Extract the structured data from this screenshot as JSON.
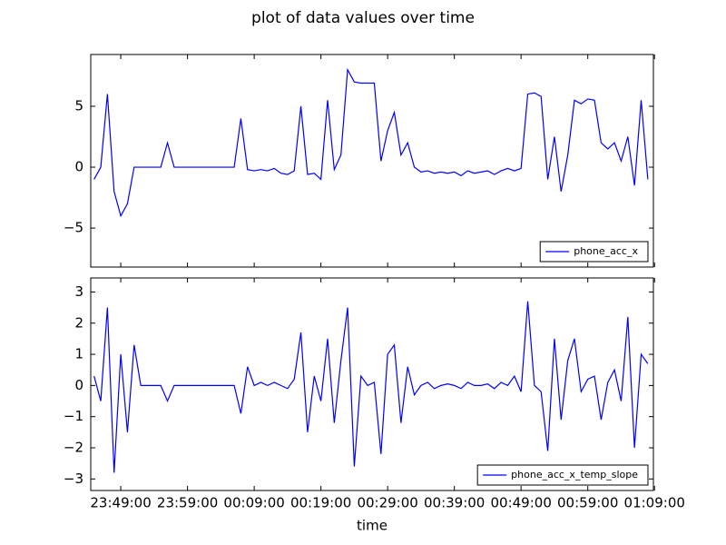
{
  "chart_data": [
    {
      "type": "line",
      "title": "plot of data values over time",
      "x": [
        "23:45:00",
        "23:46:00",
        "23:47:00",
        "23:48:00",
        "23:49:00",
        "23:50:00",
        "23:51:00",
        "23:52:00",
        "23:53:00",
        "23:54:00",
        "23:55:00",
        "23:56:00",
        "23:57:00",
        "23:58:00",
        "23:59:00",
        "00:00:00",
        "00:01:00",
        "00:02:00",
        "00:03:00",
        "00:04:00",
        "00:05:00",
        "00:06:00",
        "00:07:00",
        "00:08:00",
        "00:09:00",
        "00:10:00",
        "00:11:00",
        "00:12:00",
        "00:13:00",
        "00:14:00",
        "00:15:00",
        "00:16:00",
        "00:17:00",
        "00:18:00",
        "00:19:00",
        "00:20:00",
        "00:21:00",
        "00:22:00",
        "00:23:00",
        "00:24:00",
        "00:25:00",
        "00:26:00",
        "00:27:00",
        "00:28:00",
        "00:29:00",
        "00:30:00",
        "00:31:00",
        "00:32:00",
        "00:33:00",
        "00:34:00",
        "00:35:00",
        "00:36:00",
        "00:37:00",
        "00:38:00",
        "00:39:00",
        "00:40:00",
        "00:41:00",
        "00:42:00",
        "00:43:00",
        "00:44:00",
        "00:45:00",
        "00:46:00",
        "00:47:00",
        "00:48:00",
        "00:49:00",
        "00:50:00",
        "00:51:00",
        "00:52:00",
        "00:53:00",
        "00:54:00",
        "00:55:00",
        "00:56:00",
        "00:57:00",
        "00:58:00",
        "00:59:00",
        "01:00:00",
        "01:01:00",
        "01:02:00",
        "01:03:00",
        "01:04:00",
        "01:05:00",
        "01:06:00",
        "01:07:00",
        "01:08:00"
      ],
      "series": [
        {
          "name": "phone_acc_x",
          "color": "#0000ff",
          "values": [
            -1,
            0,
            6,
            -2,
            -4,
            -3,
            0,
            0,
            0,
            0,
            0,
            2,
            0,
            0,
            0,
            0,
            0,
            0,
            0,
            0,
            0,
            0,
            4,
            -0.2,
            -0.3,
            -0.2,
            -0.3,
            -0.1,
            -0.5,
            -0.6,
            -0.3,
            5,
            -0.6,
            -0.5,
            -1,
            5.5,
            -0.2,
            1,
            8,
            7,
            6.9,
            6.9,
            6.9,
            0.5,
            3,
            4.5,
            1,
            2,
            0,
            -0.4,
            -0.3,
            -0.5,
            -0.4,
            -0.5,
            -0.4,
            -0.7,
            -0.3,
            -0.5,
            -0.4,
            -0.3,
            -0.6,
            -0.3,
            -0.1,
            -0.3,
            -0.1,
            6,
            6.1,
            5.8,
            -1,
            2.5,
            -2,
            1,
            5.5,
            5.2,
            5.6,
            5.5,
            2,
            1.5,
            2,
            0.5,
            2.5,
            -1.5,
            5.5,
            -1
          ]
        }
      ],
      "xlim": [
        "23:44:30",
        "01:08:50"
      ],
      "xticks": [
        "23:49:00",
        "23:59:00",
        "00:09:00",
        "00:19:00",
        "00:29:00",
        "00:39:00",
        "00:49:00",
        "00:59:00",
        "01:09:00"
      ],
      "ylim": [
        -8.2,
        9.25
      ],
      "yticks": [
        {
          "value": -5,
          "label": "−5"
        },
        0,
        5
      ],
      "legend": "lower right"
    },
    {
      "type": "line",
      "xlabel": "time",
      "x": [
        "23:45:00",
        "23:46:00",
        "23:47:00",
        "23:48:00",
        "23:49:00",
        "23:50:00",
        "23:51:00",
        "23:52:00",
        "23:53:00",
        "23:54:00",
        "23:55:00",
        "23:56:00",
        "23:57:00",
        "23:58:00",
        "23:59:00",
        "00:00:00",
        "00:01:00",
        "00:02:00",
        "00:03:00",
        "00:04:00",
        "00:05:00",
        "00:06:00",
        "00:07:00",
        "00:08:00",
        "00:09:00",
        "00:10:00",
        "00:11:00",
        "00:12:00",
        "00:13:00",
        "00:14:00",
        "00:15:00",
        "00:16:00",
        "00:17:00",
        "00:18:00",
        "00:19:00",
        "00:20:00",
        "00:21:00",
        "00:22:00",
        "00:23:00",
        "00:24:00",
        "00:25:00",
        "00:26:00",
        "00:27:00",
        "00:28:00",
        "00:29:00",
        "00:30:00",
        "00:31:00",
        "00:32:00",
        "00:33:00",
        "00:34:00",
        "00:35:00",
        "00:36:00",
        "00:37:00",
        "00:38:00",
        "00:39:00",
        "00:40:00",
        "00:41:00",
        "00:42:00",
        "00:43:00",
        "00:44:00",
        "00:45:00",
        "00:46:00",
        "00:47:00",
        "00:48:00",
        "00:49:00",
        "00:50:00",
        "00:51:00",
        "00:52:00",
        "00:53:00",
        "00:54:00",
        "00:55:00",
        "00:56:00",
        "00:57:00",
        "00:58:00",
        "00:59:00",
        "01:00:00",
        "01:01:00",
        "01:02:00",
        "01:03:00",
        "01:04:00",
        "01:05:00",
        "01:06:00",
        "01:07:00",
        "01:08:00"
      ],
      "series": [
        {
          "name": "phone_acc_x_temp_slope",
          "color": "#0000ff",
          "values": [
            0.3,
            -0.5,
            2.5,
            -2.8,
            1,
            -1.5,
            1.3,
            0,
            0,
            0,
            0,
            -0.5,
            0,
            0,
            0,
            0,
            0,
            0,
            0,
            0,
            0,
            0,
            -0.9,
            0.6,
            0,
            0.1,
            0,
            0.1,
            0,
            -0.1,
            0.2,
            1.7,
            -1.5,
            0.3,
            -0.5,
            1.5,
            -1.2,
            0.8,
            2.5,
            -2.6,
            0.3,
            0,
            0.1,
            -2.2,
            1,
            1.3,
            -1.2,
            0.6,
            -0.3,
            0,
            0.1,
            -0.1,
            0,
            0.05,
            0,
            -0.1,
            0.1,
            0,
            0,
            0.05,
            -0.1,
            0.1,
            0,
            0.3,
            -0.2,
            2.7,
            0,
            -0.2,
            -2.1,
            1.5,
            -1.1,
            0.8,
            1.5,
            -0.2,
            0.2,
            0.3,
            -1.1,
            0.1,
            0.5,
            -0.5,
            2.2,
            -2,
            1,
            0.7
          ]
        }
      ],
      "xlim": [
        "23:44:30",
        "01:08:50"
      ],
      "xticks": [
        "23:49:00",
        "23:59:00",
        "00:09:00",
        "00:19:00",
        "00:29:00",
        "00:39:00",
        "00:49:00",
        "00:59:00",
        "01:09:00"
      ],
      "ylim": [
        -3.37,
        3.45
      ],
      "yticks": [
        {
          "value": -3,
          "label": "−3"
        },
        {
          "value": -2,
          "label": "−2"
        },
        {
          "value": -1,
          "label": "−1"
        },
        0,
        1,
        2,
        3
      ],
      "legend": "lower right"
    }
  ]
}
